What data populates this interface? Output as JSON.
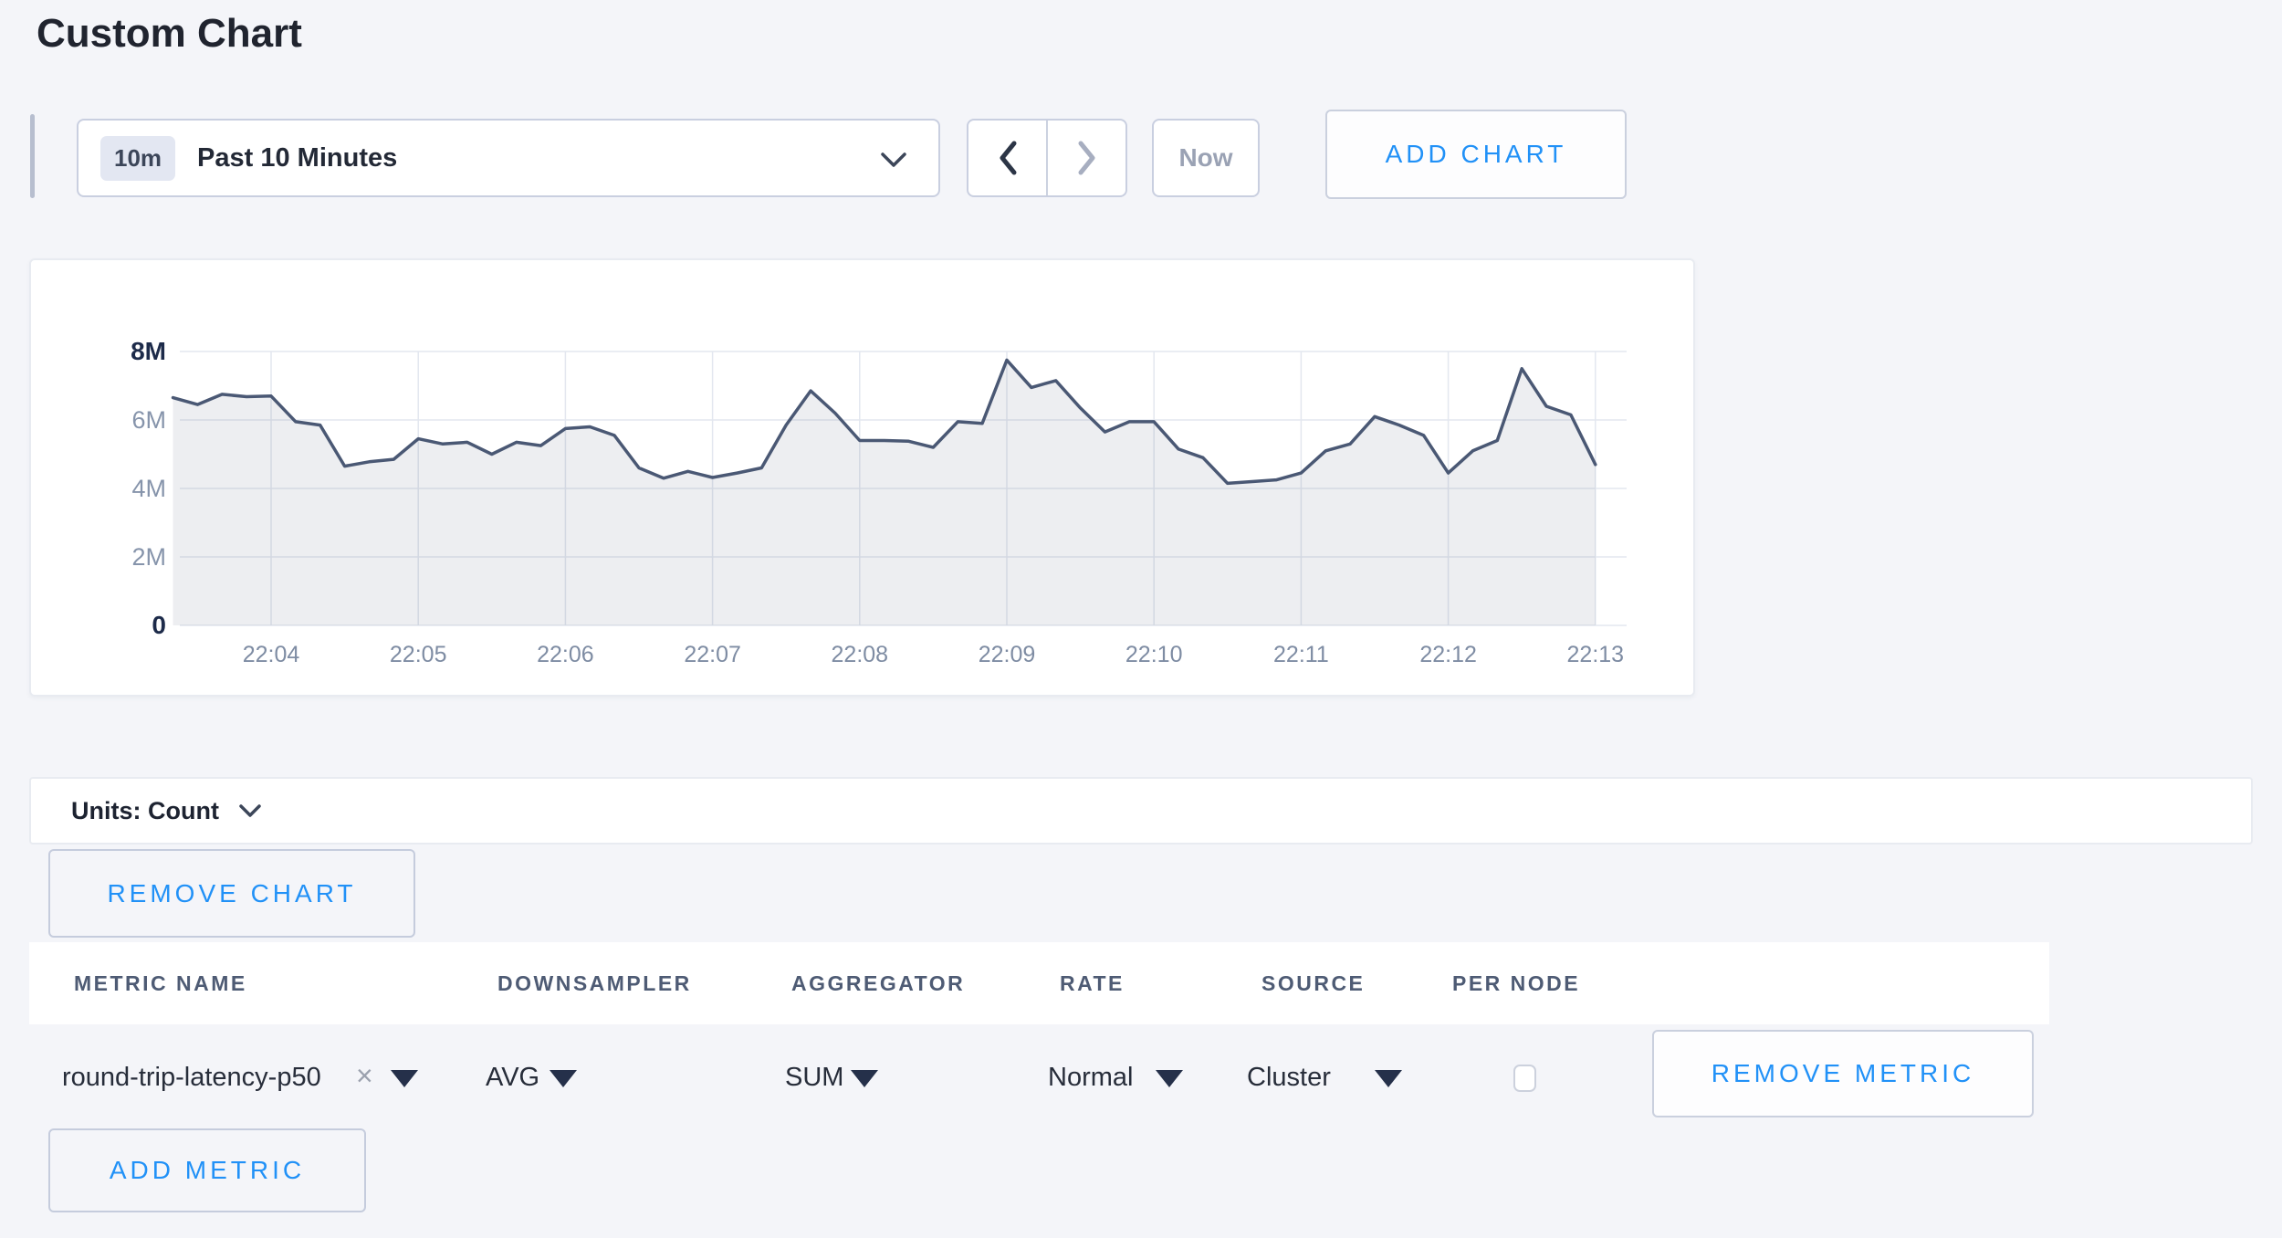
{
  "page": {
    "title": "Custom Chart"
  },
  "colors": {
    "accent_blue": "#2191f7",
    "series_line": "#4a5874",
    "series_fill": "rgba(74,88,116,0.10)",
    "grid": "#e3e7ef",
    "axis_label_strong": "#1d2b4a",
    "axis_label_weak": "#8694ab",
    "x_tick_label": "#7e8ca3"
  },
  "toolbar": {
    "time_range": {
      "badge": "10m",
      "label": "Past 10 Minutes"
    },
    "now_label": "Now",
    "add_chart_label": "ADD CHART"
  },
  "chart_data": {
    "type": "area",
    "title": "",
    "xlabel": "",
    "ylabel": "Count",
    "x_ticks": [
      "22:04",
      "22:05",
      "22:06",
      "22:07",
      "22:08",
      "22:09",
      "22:10",
      "22:11",
      "22:12",
      "22:13"
    ],
    "y_tick_values_millions": [
      0,
      2,
      4,
      6,
      8
    ],
    "y_tick_labels": [
      "0",
      "2M",
      "4M",
      "6M",
      "8M"
    ],
    "ylim_millions": [
      0,
      8
    ],
    "grid": true,
    "legend": false,
    "interval_seconds": 10,
    "points_per_tick": 6,
    "pre_tick_points": 4,
    "start_time": "22:03:20",
    "series": [
      {
        "name": "round-trip-latency-p50",
        "values_millions": [
          6.65,
          6.45,
          6.75,
          6.68,
          6.7,
          5.95,
          5.85,
          4.65,
          4.78,
          4.85,
          5.45,
          5.3,
          5.35,
          5.0,
          5.35,
          5.25,
          5.75,
          5.8,
          5.55,
          4.6,
          4.3,
          4.5,
          4.32,
          4.45,
          4.6,
          5.85,
          6.85,
          6.2,
          5.4,
          5.4,
          5.38,
          5.2,
          5.95,
          5.9,
          7.75,
          6.95,
          7.15,
          6.35,
          5.65,
          5.95,
          5.95,
          5.15,
          4.9,
          4.15,
          4.2,
          4.25,
          4.45,
          5.1,
          5.3,
          6.1,
          5.85,
          5.55,
          4.45,
          5.1,
          5.4,
          7.5,
          6.4,
          6.15,
          4.7
        ]
      }
    ]
  },
  "units_bar": {
    "label": "Units: Count"
  },
  "chart_actions": {
    "remove_chart_label": "REMOVE CHART"
  },
  "metrics_table": {
    "headers": [
      "METRIC NAME",
      "DOWNSAMPLER",
      "AGGREGATOR",
      "RATE",
      "SOURCE",
      "PER NODE"
    ],
    "rows": [
      {
        "metric_name": "round-trip-latency-p50",
        "clear_icon": "×",
        "downsampler": "AVG",
        "aggregator": "SUM",
        "rate": "Normal",
        "source": "Cluster",
        "per_node_checked": false,
        "remove_label": "REMOVE METRIC"
      }
    ],
    "add_metric_label": "ADD METRIC"
  }
}
